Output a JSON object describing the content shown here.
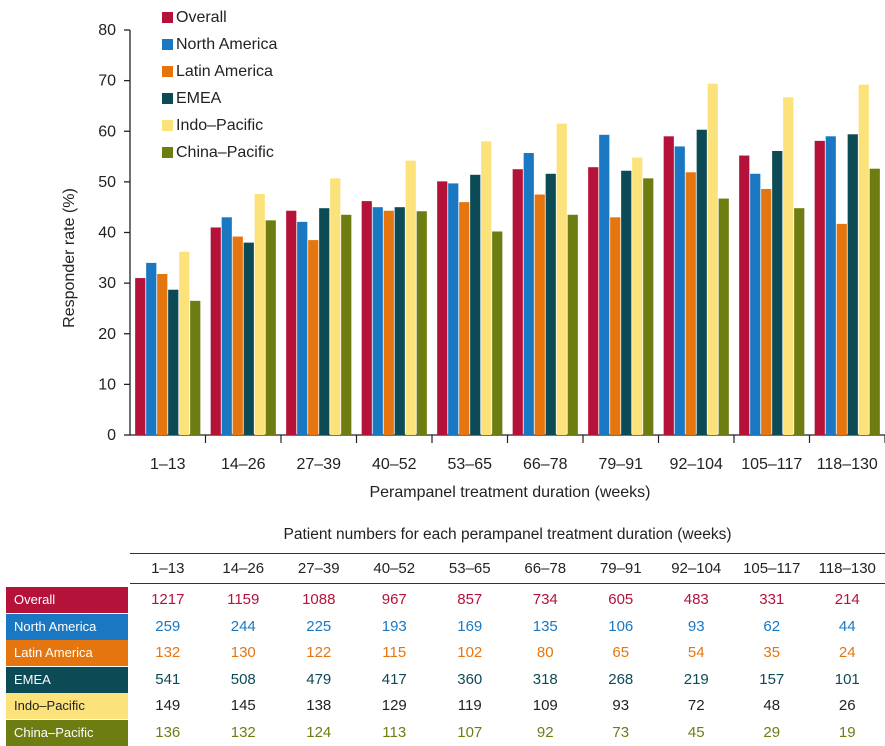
{
  "chart_data": {
    "type": "bar",
    "xlabel": "Perampanel treatment duration (weeks)",
    "ylabel": "Responder rate (%)",
    "ylim": [
      0,
      80
    ],
    "yticks": [
      0,
      10,
      20,
      30,
      40,
      50,
      60,
      70,
      80
    ],
    "legend_position": "top-left",
    "categories": [
      "1–13",
      "14–26",
      "27–39",
      "40–52",
      "53–65",
      "66–78",
      "79–91",
      "92–104",
      "105–117",
      "118–130"
    ],
    "series": [
      {
        "name": "Overall",
        "color": "#b5123a",
        "values": [
          31,
          41,
          44.3,
          46.2,
          50.1,
          52.5,
          52.9,
          59,
          55.2,
          58.1
        ]
      },
      {
        "name": "North America",
        "color": "#1a78c2",
        "values": [
          34,
          43,
          42.1,
          45,
          49.7,
          55.7,
          59.3,
          57,
          51.6,
          59
        ]
      },
      {
        "name": "Latin America",
        "color": "#e5760f",
        "values": [
          31.8,
          39.2,
          38.5,
          44.3,
          46,
          47.5,
          43,
          51.9,
          48.6,
          41.7
        ]
      },
      {
        "name": "EMEA",
        "color": "#0c4a56",
        "values": [
          28.7,
          38,
          44.8,
          45,
          51.4,
          51.6,
          52.2,
          60.3,
          56.1,
          59.4
        ]
      },
      {
        "name": "Indo–Pacific",
        "color": "#fbe27a",
        "values": [
          36.2,
          47.6,
          50.7,
          54.2,
          58,
          61.5,
          54.8,
          69.4,
          66.7,
          69.2
        ]
      },
      {
        "name": "China–Pacific",
        "color": "#6d7d12",
        "values": [
          26.5,
          42.4,
          43.5,
          44.2,
          40.2,
          43.5,
          50.7,
          46.7,
          44.8,
          52.6
        ]
      }
    ]
  },
  "table": {
    "title": "Patient numbers for each perampanel treatment duration (weeks)",
    "columns": [
      "1–13",
      "14–26",
      "27–39",
      "40–52",
      "53–65",
      "66–78",
      "79–91",
      "92–104",
      "105–117",
      "118–130"
    ],
    "rows": [
      {
        "label": "Overall",
        "bg": "#b5123a",
        "text_color": "#b5123a",
        "values": [
          "1217",
          "1159",
          "1088",
          "967",
          "857",
          "734",
          "605",
          "483",
          "331",
          "214"
        ]
      },
      {
        "label": "North America",
        "bg": "#1a78c2",
        "text_color": "#1a78c2",
        "values": [
          "259",
          "244",
          "225",
          "193",
          "169",
          "135",
          "106",
          "93",
          "62",
          "44"
        ]
      },
      {
        "label": "Latin America",
        "bg": "#e5760f",
        "text_color": "#e5760f",
        "values": [
          "132",
          "130",
          "122",
          "115",
          "102",
          "80",
          "65",
          "54",
          "35",
          "24"
        ]
      },
      {
        "label": "EMEA",
        "bg": "#0c4a56",
        "text_color": "#0c4a56",
        "values": [
          "541",
          "508",
          "479",
          "417",
          "360",
          "318",
          "268",
          "219",
          "157",
          "101"
        ]
      },
      {
        "label": "Indo–Pacific",
        "bg": "#fbe27a",
        "text_color": "#222222",
        "values": [
          "149",
          "145",
          "138",
          "129",
          "119",
          "109",
          "93",
          "72",
          "48",
          "26"
        ]
      },
      {
        "label": "China–Pacific",
        "bg": "#6d7d12",
        "text_color": "#6d7d12",
        "values": [
          "136",
          "132",
          "124",
          "113",
          "107",
          "92",
          "73",
          "45",
          "29",
          "19"
        ]
      }
    ]
  }
}
